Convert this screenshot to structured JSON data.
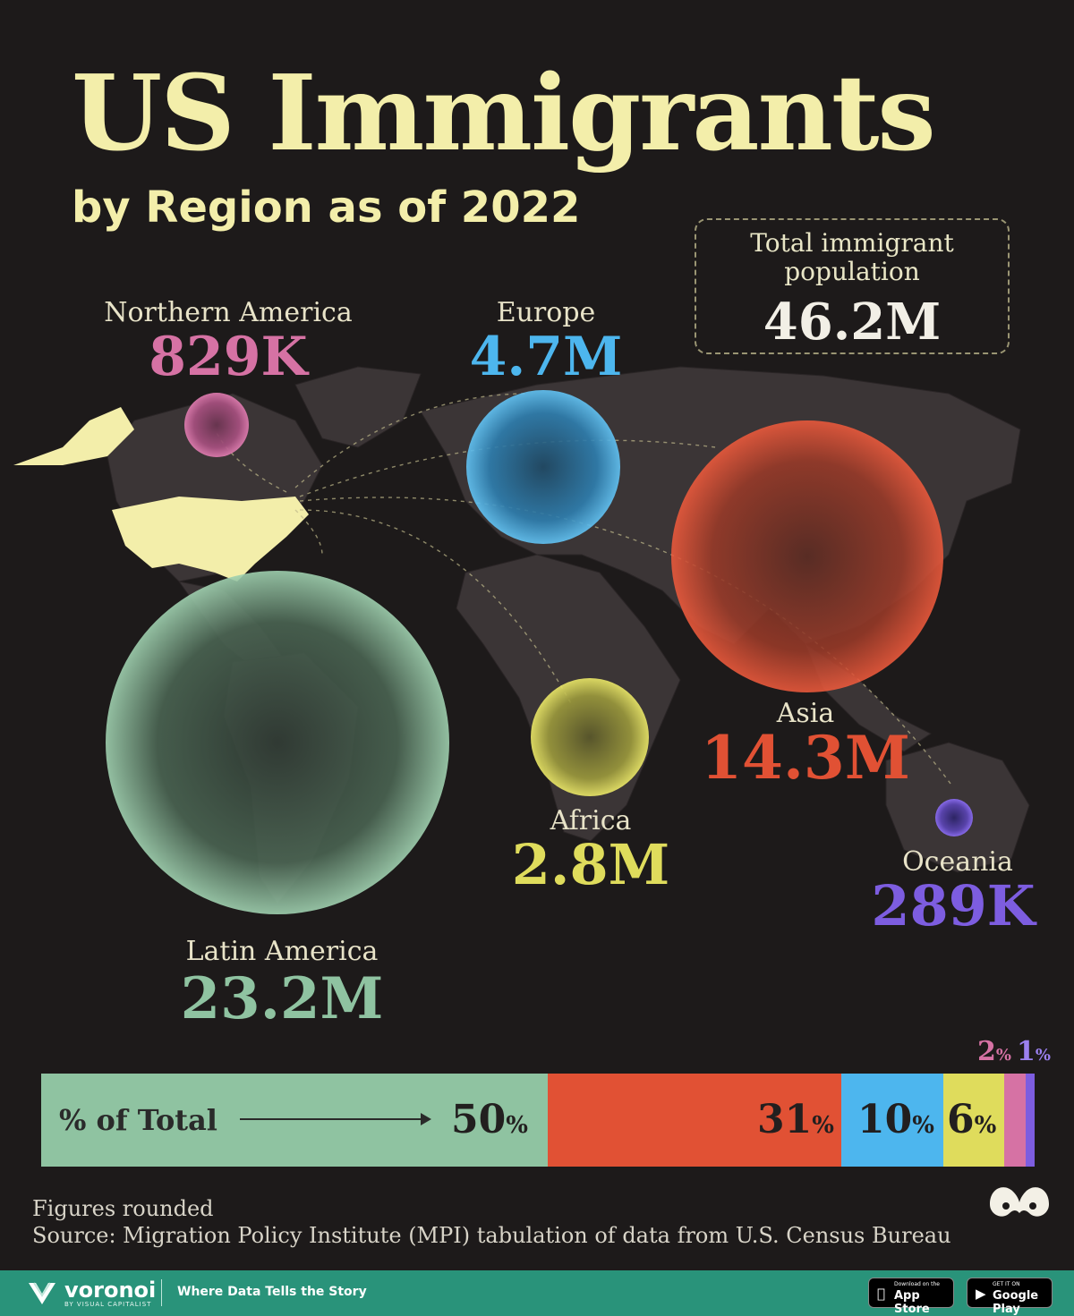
{
  "title": "US Immigrants",
  "subtitle": "by Region as of 2022",
  "total": {
    "label_line1": "Total immigrant",
    "label_line2": "population",
    "value": "46.2M"
  },
  "regions": [
    {
      "name": "Northern America",
      "value": "829K",
      "color": "#d672a4"
    },
    {
      "name": "Europe",
      "value": "4.7M",
      "color": "#4db6ee"
    },
    {
      "name": "Asia",
      "value": "14.3M",
      "color": "#e15134"
    },
    {
      "name": "Africa",
      "value": "2.8M",
      "color": "#dfdc5c"
    },
    {
      "name": "Oceania",
      "value": "289K",
      "color": "#7d5de0"
    },
    {
      "name": "Latin America",
      "value": "23.2M",
      "color": "#8fc3a1"
    }
  ],
  "bar": {
    "label": "% of Total",
    "segments": [
      {
        "region": "Latin America",
        "pct": "50",
        "color": "#8fc3a1"
      },
      {
        "region": "Asia",
        "pct": "31",
        "color": "#e15134"
      },
      {
        "region": "Europe",
        "pct": "10",
        "color": "#4db6ee"
      },
      {
        "region": "Africa",
        "pct": "6",
        "color": "#dfdc5c"
      },
      {
        "region": "Northern America",
        "pct": "2",
        "color": "#d672a4"
      },
      {
        "region": "Oceania",
        "pct": "1",
        "color": "#7d5de0"
      }
    ],
    "pct_symbol": "%"
  },
  "chart_data": {
    "type": "bubble-map",
    "title": "US Immigrants",
    "subtitle": "by Region as of 2022",
    "unit": "immigrants",
    "categories": [
      "Latin America",
      "Asia",
      "Europe",
      "Africa",
      "Northern America",
      "Oceania"
    ],
    "values_millions": [
      23.2,
      14.3,
      4.7,
      2.8,
      0.829,
      0.289
    ],
    "value_labels": [
      "23.2M",
      "14.3M",
      "4.7M",
      "2.8M",
      "829K",
      "289K"
    ],
    "percent_of_total": [
      50,
      31,
      10,
      6,
      2,
      1
    ],
    "total_millions": 46.2
  },
  "footnote": "Figures rounded",
  "source": "Source: Migration Policy Institute (MPI) tabulation of data from U.S. Census Bureau",
  "footer": {
    "brand": "voronoi",
    "brand_sub": "BY VISUAL CAPITALIST",
    "tagline": "Where Data Tells the Story",
    "app_store_small": "Download on the",
    "app_store": "App Store",
    "google_small": "GET IT ON",
    "google_play": "Google Play"
  }
}
